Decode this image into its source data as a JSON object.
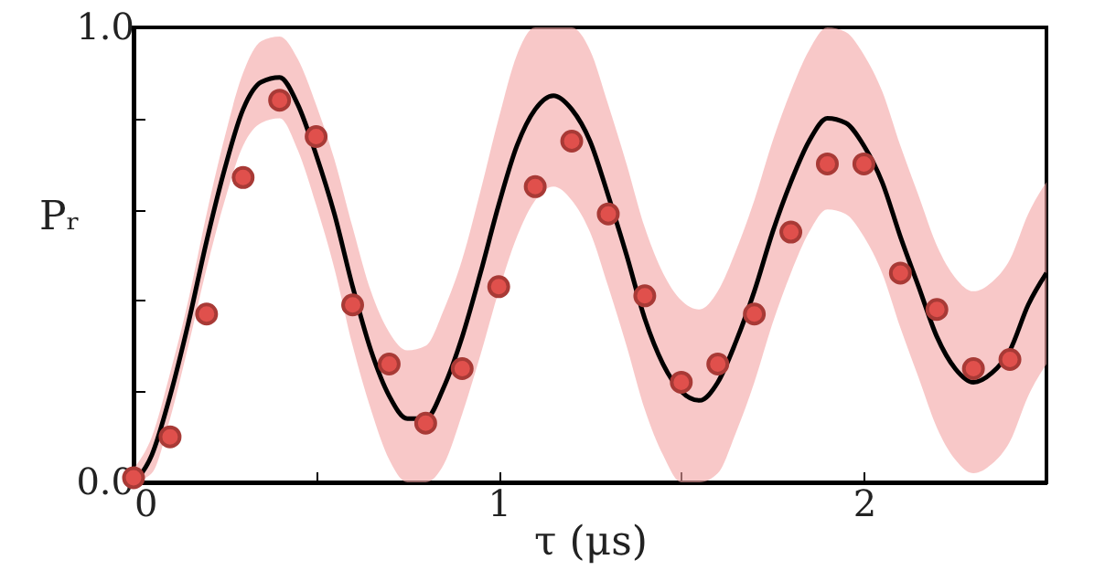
{
  "chart_data": {
    "type": "line",
    "xlabel": "τ (μs)",
    "ylabel": "Pᵣ",
    "xlim": [
      0,
      2.5
    ],
    "ylim": [
      0,
      1
    ],
    "xticks": [
      0,
      {
        "value": 0.5,
        "label": null
      },
      1,
      {
        "value": 1.5,
        "label": null
      },
      2,
      {
        "value": 2.5,
        "label": null
      }
    ],
    "yticks": [
      {
        "value": 0,
        "label": "0.0"
      },
      {
        "value": 0.2,
        "label": null
      },
      {
        "value": 0.4,
        "label": null
      },
      {
        "value": 0.6,
        "label": null
      },
      {
        "value": 0.8,
        "label": null
      },
      {
        "value": 1,
        "label": "1.0"
      }
    ],
    "grid": false,
    "marker": "circle",
    "line_style": "solid",
    "series": [
      {
        "color": "#000000",
        "marker": "none",
        "x": [
          0,
          0.05,
          0.1,
          0.15,
          0.2,
          0.25,
          0.3,
          0.35,
          0.4,
          0.45,
          0.5,
          0.55,
          0.6,
          0.65,
          0.7,
          0.75,
          0.8,
          0.85,
          0.9,
          0.95,
          1,
          1.05,
          1.1,
          1.15,
          1.2,
          1.25,
          1.3,
          1.35,
          1.4,
          1.45,
          1.5,
          1.55,
          1.6,
          1.65,
          1.7,
          1.75,
          1.8,
          1.85,
          1.9,
          1.95,
          2,
          2.05,
          2.1,
          2.15,
          2.2,
          2.25,
          2.3,
          2.35,
          2.4,
          2.45,
          2.5
        ],
        "values": [
          0,
          0.06,
          0.19,
          0.35,
          0.53,
          0.69,
          0.82,
          0.88,
          0.89,
          0.83,
          0.72,
          0.59,
          0.43,
          0.29,
          0.19,
          0.14,
          0.14,
          0.21,
          0.32,
          0.46,
          0.61,
          0.74,
          0.82,
          0.85,
          0.82,
          0.75,
          0.63,
          0.5,
          0.36,
          0.26,
          0.2,
          0.18,
          0.22,
          0.31,
          0.42,
          0.55,
          0.66,
          0.75,
          0.8,
          0.79,
          0.74,
          0.66,
          0.54,
          0.43,
          0.32,
          0.25,
          0.22,
          0.24,
          0.29,
          0.39,
          0.46
        ],
        "lower": [
          0,
          0.02,
          0.14,
          0.3,
          0.47,
          0.62,
          0.74,
          0.79,
          0.8,
          0.73,
          0.61,
          0.47,
          0.3,
          0.16,
          0.05,
          0,
          0,
          0.04,
          0.15,
          0.28,
          0.42,
          0.54,
          0.62,
          0.65,
          0.62,
          0.55,
          0.43,
          0.3,
          0.16,
          0.06,
          0,
          0,
          0.02,
          0.11,
          0.22,
          0.35,
          0.46,
          0.55,
          0.6,
          0.59,
          0.54,
          0.46,
          0.34,
          0.23,
          0.12,
          0.05,
          0.02,
          0.04,
          0.09,
          0.19,
          0.26
        ],
        "upper": [
          0.03,
          0.1,
          0.24,
          0.4,
          0.59,
          0.76,
          0.9,
          0.97,
          0.98,
          0.93,
          0.83,
          0.71,
          0.56,
          0.42,
          0.33,
          0.29,
          0.3,
          0.38,
          0.49,
          0.64,
          0.8,
          0.94,
          1,
          1,
          1,
          0.95,
          0.83,
          0.7,
          0.56,
          0.46,
          0.4,
          0.38,
          0.42,
          0.51,
          0.62,
          0.75,
          0.86,
          0.95,
          1,
          0.99,
          0.94,
          0.86,
          0.74,
          0.63,
          0.52,
          0.45,
          0.42,
          0.44,
          0.49,
          0.59,
          0.66
        ]
      },
      {
        "type": "scatter",
        "color": "#e0504c",
        "x": [
          0,
          0.1,
          0.2,
          0.3,
          0.4,
          0.5,
          0.6,
          0.7,
          0.8,
          0.9,
          1,
          1.1,
          1.2,
          1.3,
          1.4,
          1.5,
          1.6,
          1.7,
          1.8,
          1.9,
          2,
          2.1,
          2.2,
          2.3,
          2.4
        ],
        "values": [
          0.01,
          0.1,
          0.37,
          0.67,
          0.84,
          0.76,
          0.39,
          0.26,
          0.13,
          0.25,
          0.43,
          0.65,
          0.75,
          0.59,
          0.41,
          0.22,
          0.26,
          0.37,
          0.55,
          0.7,
          0.7,
          0.46,
          0.38,
          0.25,
          0.27
        ]
      }
    ]
  }
}
